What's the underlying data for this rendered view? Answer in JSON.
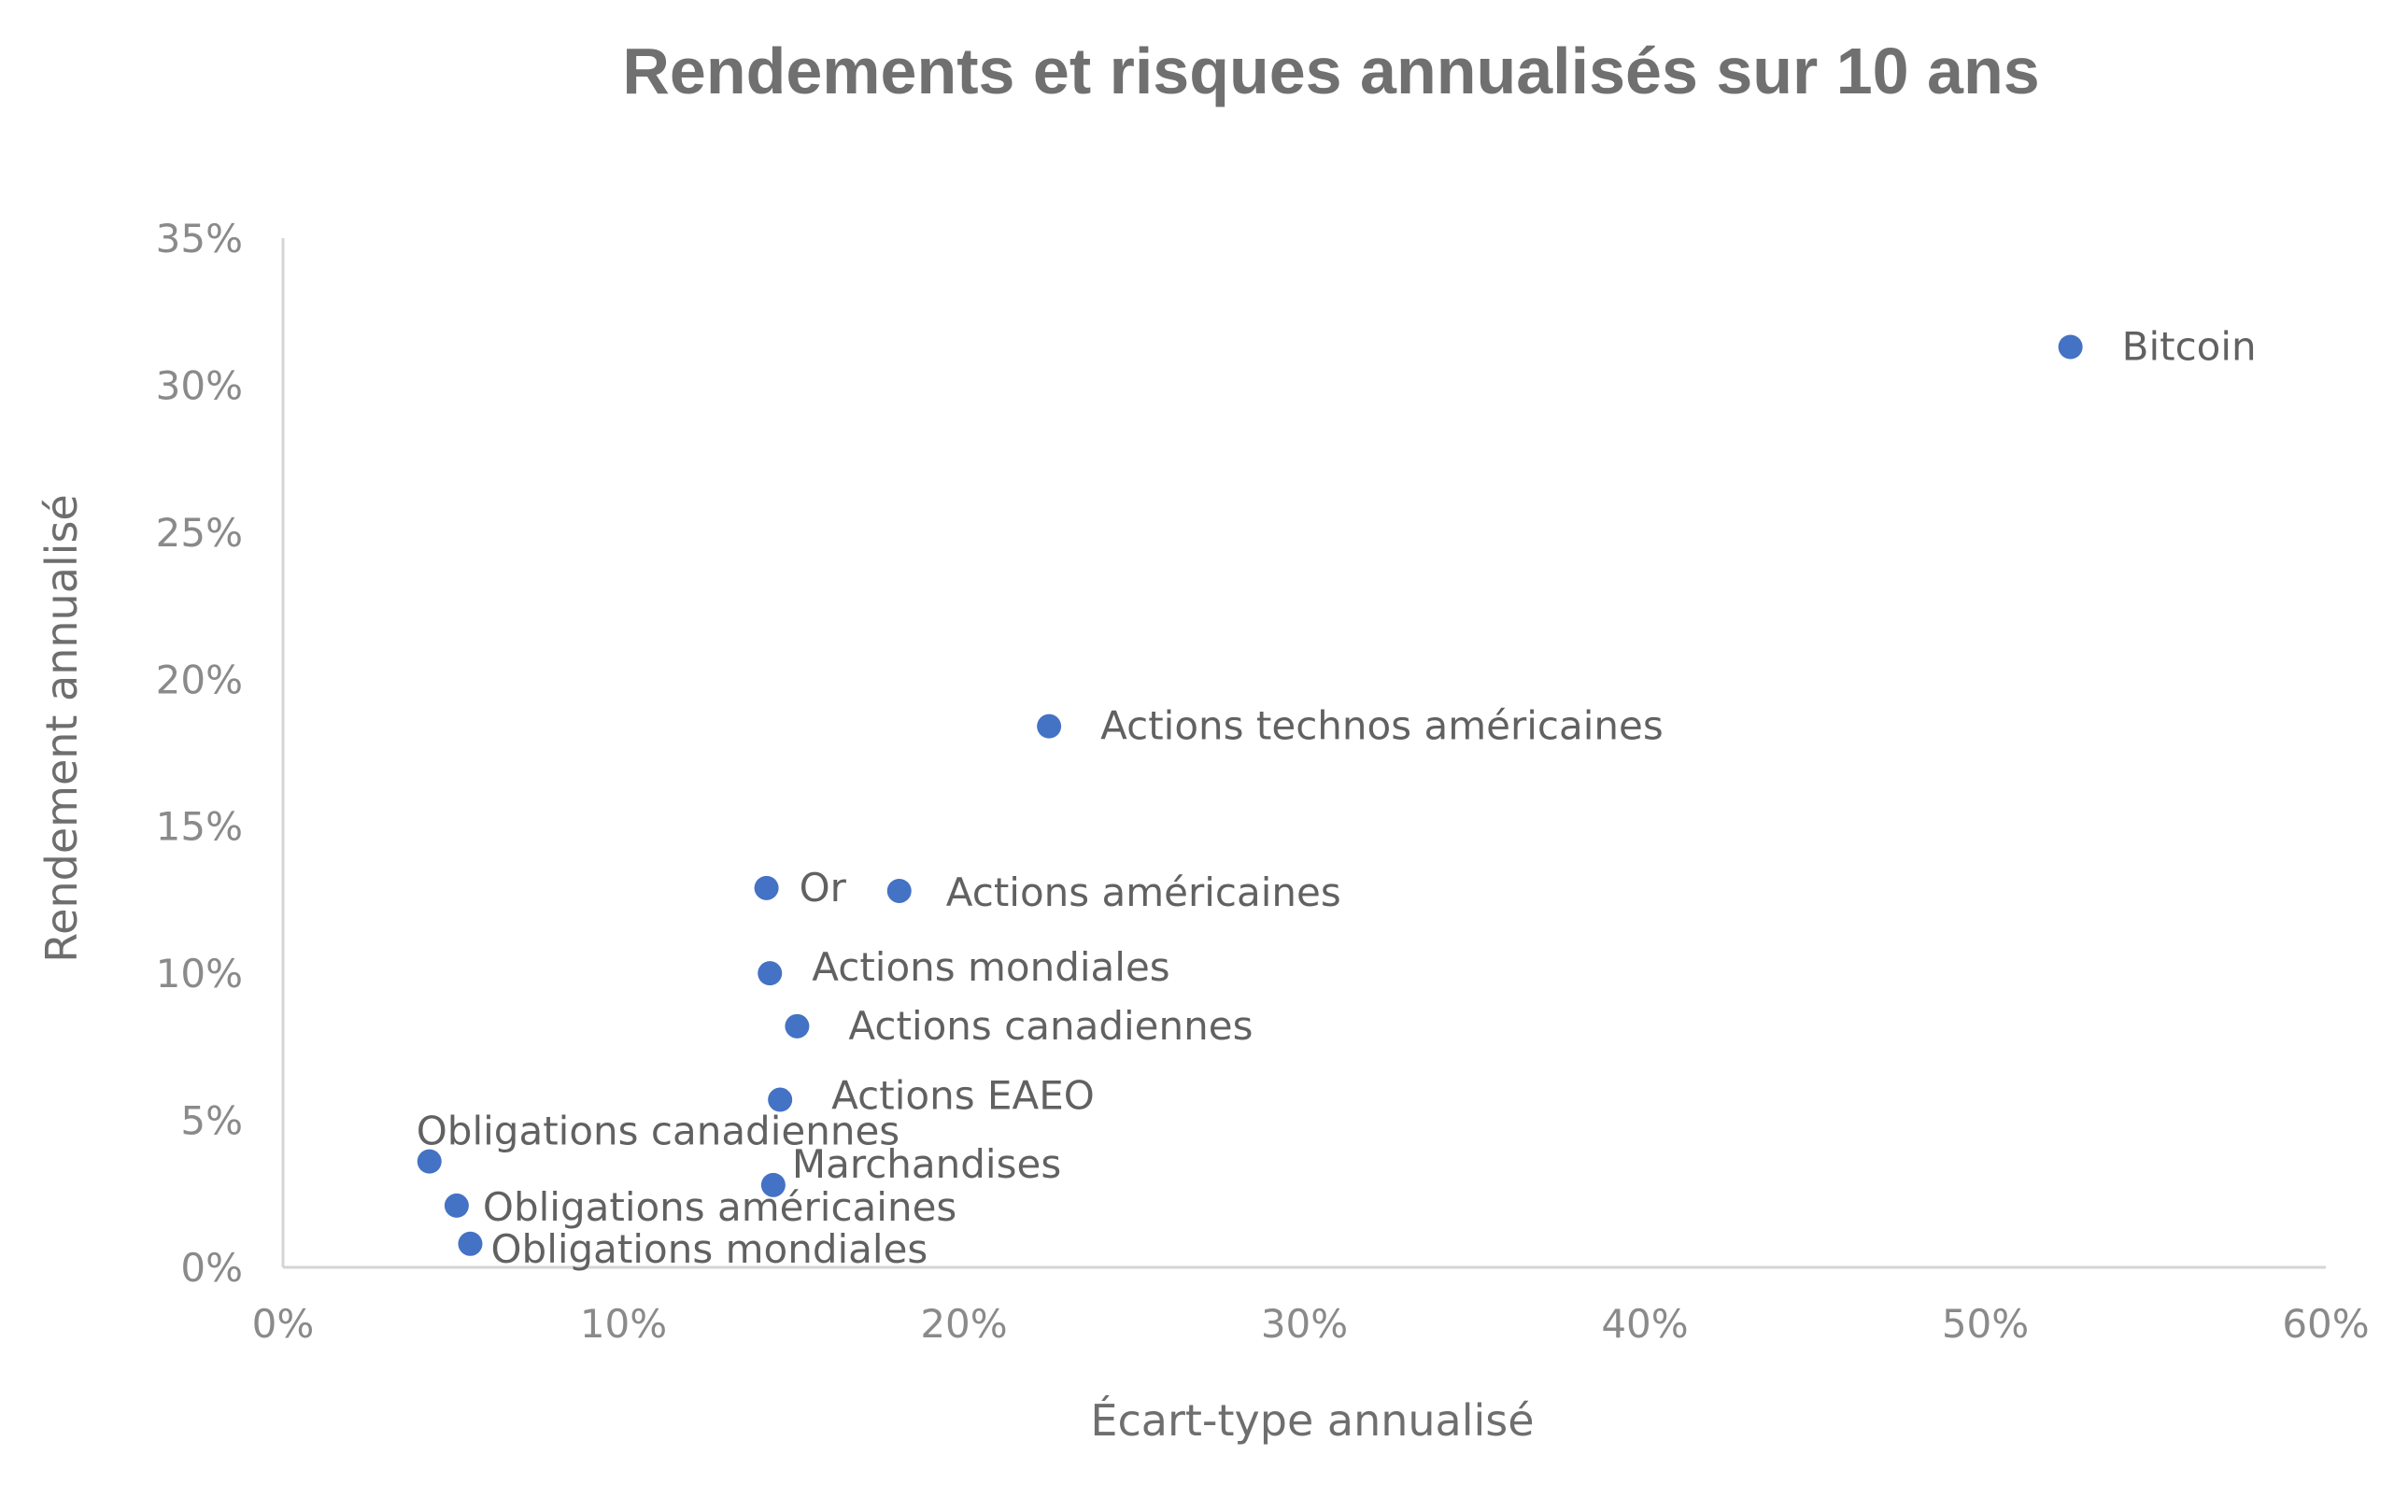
{
  "chart_data": {
    "type": "scatter",
    "title": "Rendements et risques annualisés sur 10 ans",
    "xlabel": "Écart-type annualisé",
    "ylabel": "Rendement annualisé",
    "xlim": [
      0,
      60
    ],
    "ylim": [
      0,
      35
    ],
    "x_ticks": [
      "0%",
      "10%",
      "20%",
      "30%",
      "40%",
      "50%",
      "60%"
    ],
    "y_ticks": [
      "0%",
      "5%",
      "10%",
      "15%",
      "20%",
      "25%",
      "30%",
      "35%"
    ],
    "grid": false,
    "marker_color": "#4472c4",
    "points": [
      {
        "label": "Bitcoin",
        "x": 52.5,
        "y": 31.3
      },
      {
        "label": "Actions technos américaines",
        "x": 22.5,
        "y": 18.4
      },
      {
        "label": "Or",
        "x": 14.2,
        "y": 12.9
      },
      {
        "label": "Actions américaines",
        "x": 18.1,
        "y": 12.8
      },
      {
        "label": "Actions mondiales",
        "x": 14.3,
        "y": 10.0
      },
      {
        "label": "Actions canadiennes",
        "x": 15.1,
        "y": 8.2
      },
      {
        "label": "Actions EAEO",
        "x": 14.6,
        "y": 5.7
      },
      {
        "label": "Obligations canadiennes",
        "x": 4.3,
        "y": 3.6
      },
      {
        "label": "Marchandises",
        "x": 14.4,
        "y": 2.8
      },
      {
        "label": "Obligations américaines",
        "x": 5.1,
        "y": 2.1
      },
      {
        "label": "Obligations mondiales",
        "x": 5.5,
        "y": 0.8
      }
    ]
  }
}
